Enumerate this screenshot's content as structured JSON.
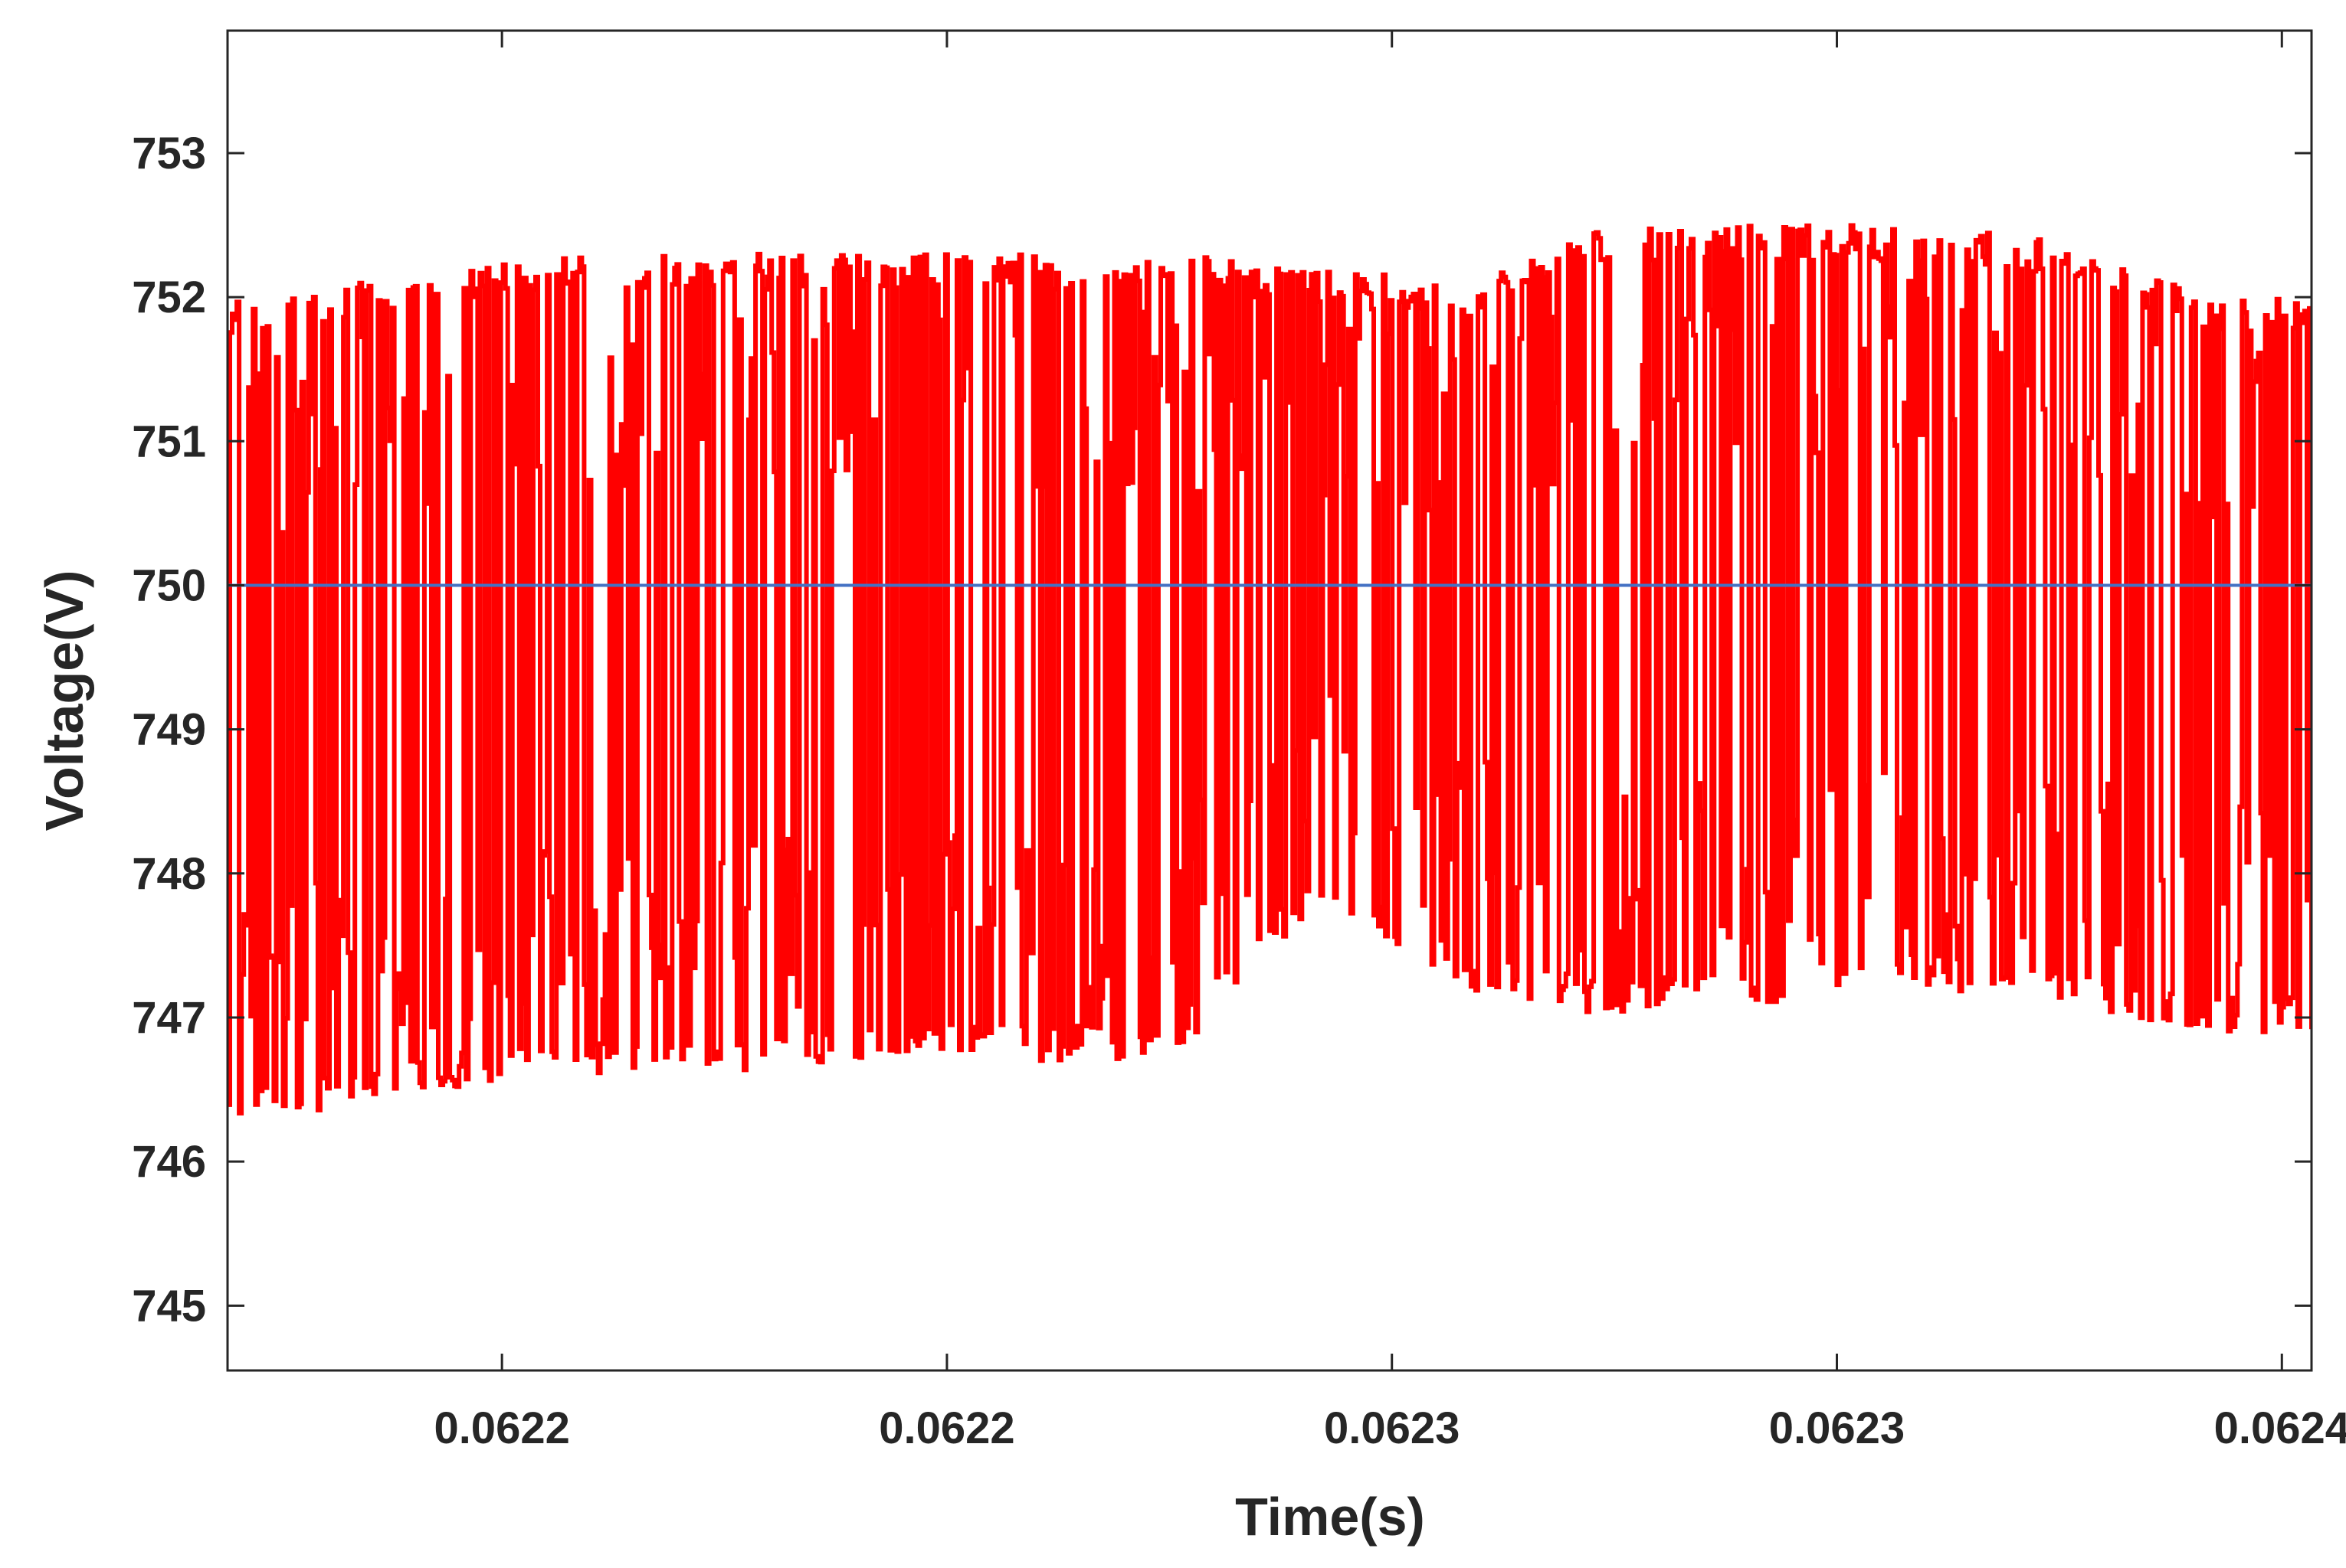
{
  "chart_data": {
    "type": "line",
    "title": "",
    "xlabel": "Time(s)",
    "ylabel": "Voltage(V)",
    "xlim": [
      0.062143,
      0.062424
    ],
    "ylim": [
      744.55,
      753.85
    ],
    "x_tick_values": [
      0.06218,
      0.06224,
      0.0623,
      0.06236,
      0.06242
    ],
    "x_tick_labels": [
      "0.0622",
      "0.0622",
      "0.0623",
      "0.0623",
      "0.0624"
    ],
    "y_ticks": [
      745,
      746,
      747,
      748,
      749,
      750,
      751,
      752,
      753
    ],
    "grid": false,
    "legend": "none",
    "series": [
      {
        "color": "#ff0000",
        "x": [
          0.06215,
          0.06217,
          0.06219,
          0.06221,
          0.06223,
          0.06225,
          0.06227,
          0.06229,
          0.06231,
          0.06233,
          0.06235,
          0.06237,
          0.06239,
          0.06241
        ],
        "max": [
          752.0,
          752.2,
          752.3,
          752.3,
          752.3,
          752.3,
          752.3,
          752.2,
          752.1,
          752.5,
          752.5,
          752.5,
          752.4,
          752.0
        ],
        "min": [
          746.3,
          746.5,
          746.6,
          746.6,
          746.7,
          746.7,
          746.7,
          747.8,
          747.2,
          747.0,
          747.1,
          747.2,
          747.1,
          746.9
        ],
        "description": "dense switching ripple"
      },
      {
        "color": "#4472c4",
        "x": [
          0.062143,
          0.062424
        ],
        "y": [
          750.0,
          750.0
        ]
      }
    ]
  }
}
